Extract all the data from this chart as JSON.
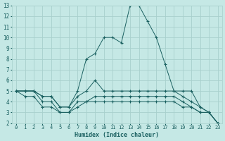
{
  "xlabel": "Humidex (Indice chaleur)",
  "background_color": "#c5e8e5",
  "grid_color": "#a8d0cc",
  "line_color": "#1a6060",
  "xlim": [
    -0.5,
    23.5
  ],
  "ylim": [
    2,
    13
  ],
  "xticks": [
    0,
    1,
    2,
    3,
    4,
    5,
    6,
    7,
    8,
    9,
    10,
    11,
    12,
    13,
    14,
    15,
    16,
    17,
    18,
    19,
    20,
    21,
    22,
    23
  ],
  "yticks": [
    2,
    3,
    4,
    5,
    6,
    7,
    8,
    9,
    10,
    11,
    12,
    13
  ],
  "series": [
    {
      "x": [
        0,
        1,
        2,
        3,
        4,
        5,
        6,
        7,
        8,
        9,
        10,
        11,
        12,
        13,
        14,
        15,
        16,
        17,
        18,
        19,
        20,
        21,
        22,
        23
      ],
      "y": [
        5,
        5,
        5,
        4.5,
        4.5,
        3.5,
        3.5,
        5,
        8,
        8.5,
        10,
        10,
        9.5,
        13,
        13,
        11.5,
        10,
        7.5,
        5,
        5,
        5,
        3.5,
        3,
        2
      ]
    },
    {
      "x": [
        0,
        1,
        2,
        3,
        4,
        5,
        6,
        7,
        8,
        9,
        10,
        11,
        12,
        13,
        14,
        15,
        16,
        17,
        18,
        19,
        20,
        21,
        22,
        23
      ],
      "y": [
        5,
        5,
        5,
        4.5,
        4.5,
        3.5,
        3.5,
        4.5,
        5,
        6,
        5,
        5,
        5,
        5,
        5,
        5,
        5,
        5,
        5,
        4.5,
        4,
        3.5,
        3,
        2
      ]
    },
    {
      "x": [
        0,
        1,
        2,
        3,
        4,
        5,
        6,
        7,
        8,
        9,
        10,
        11,
        12,
        13,
        14,
        15,
        16,
        17,
        18,
        19,
        20,
        21,
        22,
        23
      ],
      "y": [
        5,
        5,
        5,
        4,
        4,
        3,
        3,
        4,
        4,
        4.5,
        4.5,
        4.5,
        4.5,
        4.5,
        4.5,
        4.5,
        4.5,
        4.5,
        4.5,
        4,
        3.5,
        3,
        3,
        2
      ]
    },
    {
      "x": [
        0,
        1,
        2,
        3,
        4,
        5,
        6,
        7,
        8,
        9,
        10,
        11,
        12,
        13,
        14,
        15,
        16,
        17,
        18,
        19,
        20,
        21,
        22,
        23
      ],
      "y": [
        5,
        4.5,
        4.5,
        3.5,
        3.5,
        3,
        3,
        3.5,
        4,
        4,
        4,
        4,
        4,
        4,
        4,
        4,
        4,
        4,
        4,
        3.5,
        3.5,
        3,
        3,
        2
      ]
    }
  ]
}
